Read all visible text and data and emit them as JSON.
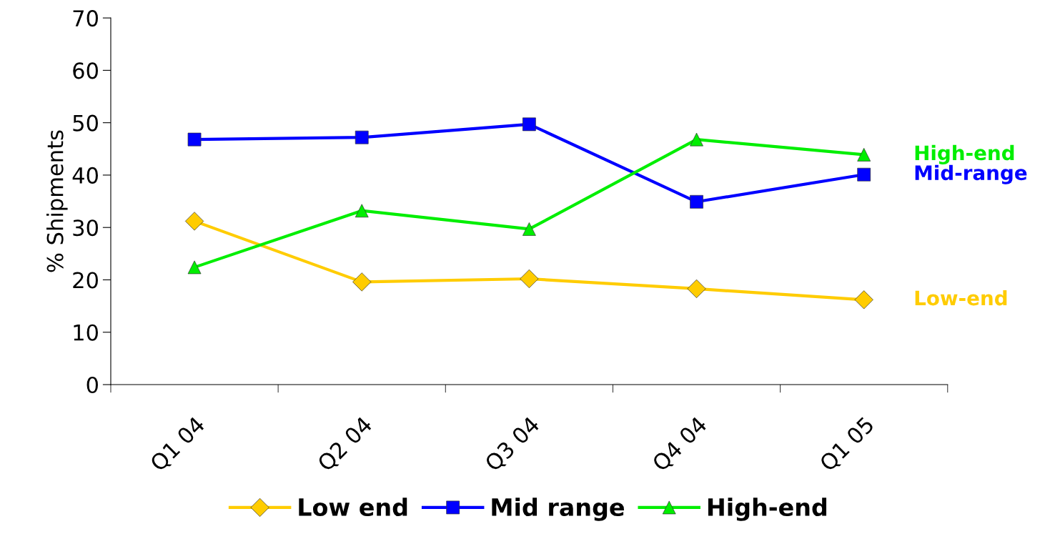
{
  "chart_data": {
    "type": "line",
    "ylabel": "% Shipments",
    "categories": [
      "Q1 04",
      "Q2 04",
      "Q3 04",
      "Q4 04",
      "Q1 05"
    ],
    "series": [
      {
        "name": "Low end",
        "color": "#ffcc00",
        "marker": "diamond",
        "values": [
          31.2,
          19.6,
          20.2,
          18.3,
          16.2
        ]
      },
      {
        "name": "Mid range",
        "color": "#0000ff",
        "marker": "square",
        "values": [
          46.8,
          47.2,
          49.7,
          34.9,
          40.1
        ]
      },
      {
        "name": "High-end",
        "color": "#00ee00",
        "marker": "triangle",
        "values": [
          22.4,
          33.2,
          29.7,
          46.8,
          43.9
        ]
      }
    ],
    "ylim": [
      0,
      70
    ],
    "yticks": [
      0,
      10,
      20,
      30,
      40,
      50,
      60,
      70
    ],
    "grid": false,
    "legend": "bottom",
    "line_style": "solid",
    "annotations": [
      "High-end",
      "Mid-range",
      "Low-end"
    ]
  }
}
